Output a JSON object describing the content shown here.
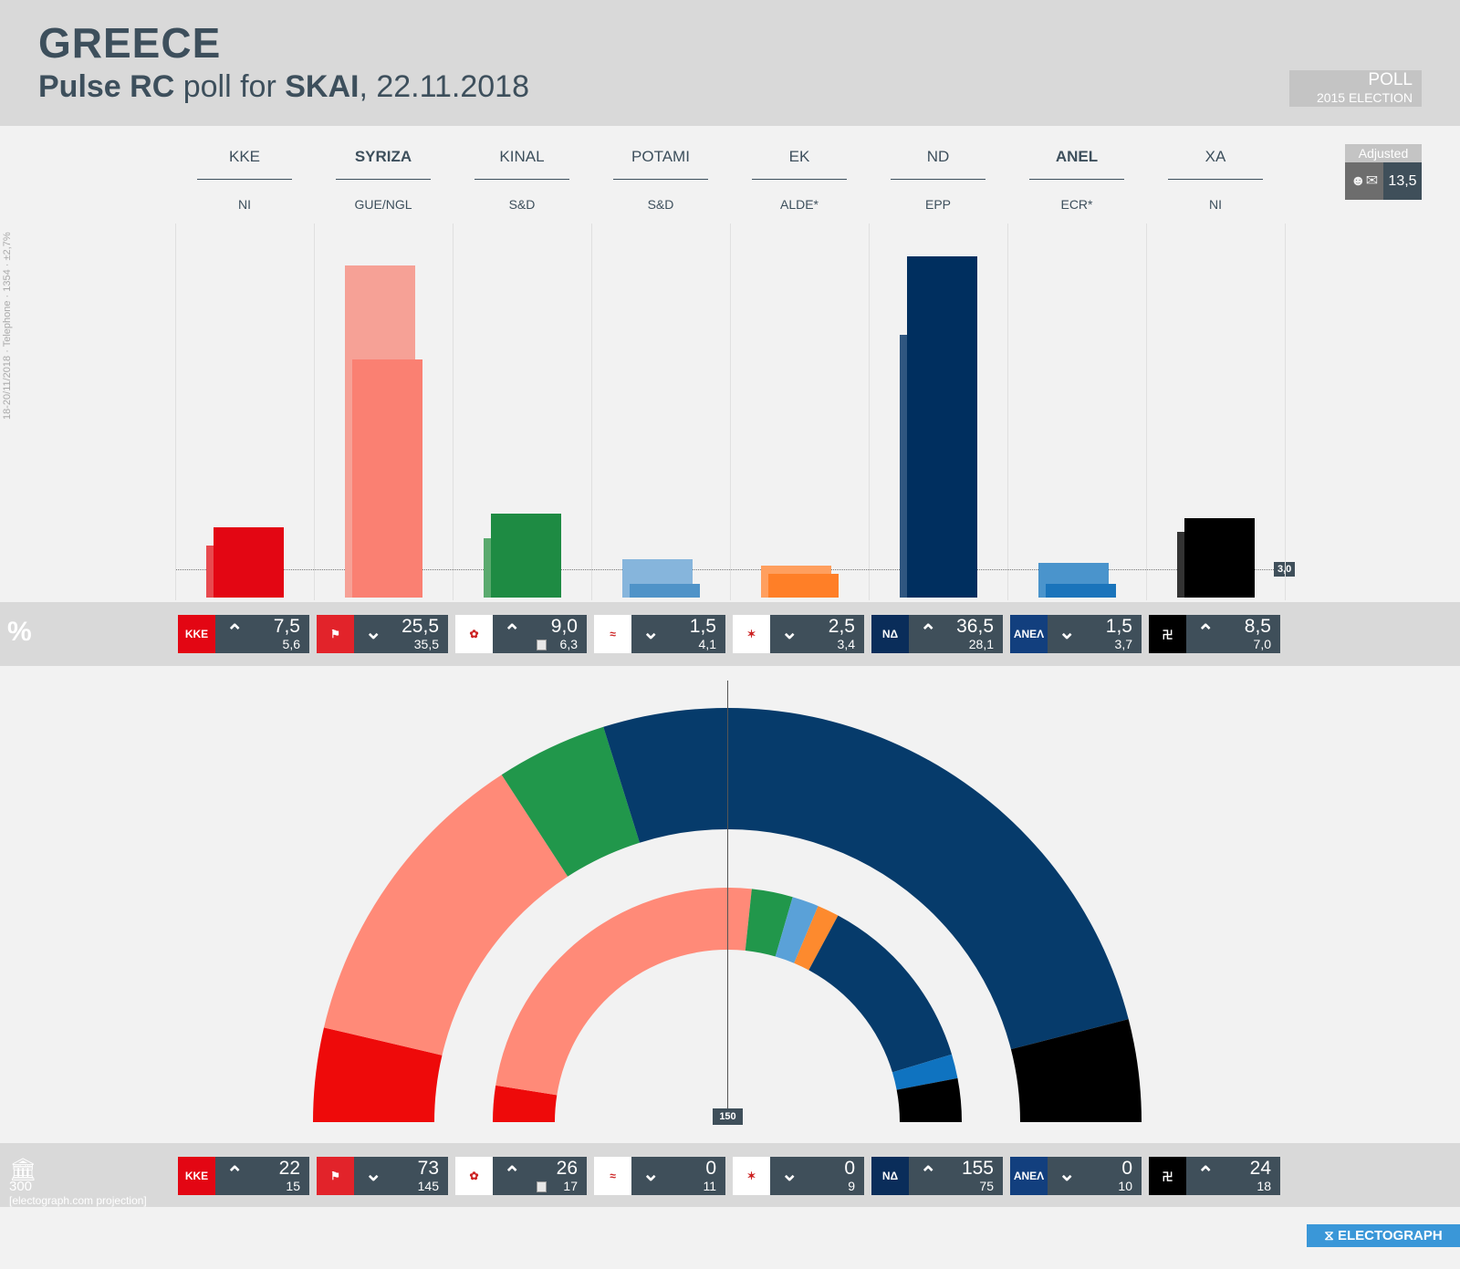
{
  "header": {
    "country": "GREECE",
    "pollster": "Pulse RC",
    "poll_for": "poll for",
    "client": "SKAI",
    "date": ", 22.11.2018"
  },
  "legend_box": {
    "current": "POLL",
    "previous": "2015 ELECTION"
  },
  "adjusted": {
    "label": "Adjusted",
    "icon": "undecided-voters-icon",
    "value": "13,5"
  },
  "methodology": "18-20/11/2018 · Telephone · 1354 · ±2,7%",
  "threshold_label": "3,0",
  "percent_symbol": "%",
  "seats": {
    "icon": "parliament-icon",
    "total": "300",
    "note": "[electograph.com projection]",
    "majority_label": "150"
  },
  "brand": "ELECTOGRAPH",
  "chart_data": [
    {
      "type": "bar",
      "ylabel": "%",
      "threshold": 3.0,
      "categories": [
        "KKE",
        "SYRIZA",
        "KINAL",
        "POTAMI",
        "EK",
        "ND",
        "ANEL",
        "XA"
      ],
      "groups": [
        "NI",
        "GUE/NGL",
        "S&D",
        "S&D",
        "ALDE*",
        "EPP",
        "ECR*",
        "NI"
      ],
      "government": [
        "SYRIZA",
        "ANEL"
      ],
      "series": [
        {
          "name": "POLL",
          "values": [
            7.5,
            25.5,
            9.0,
            1.5,
            2.5,
            36.5,
            1.5,
            8.5
          ],
          "labels": [
            "7,5",
            "25,5",
            "9,0",
            "1,5",
            "2,5",
            "36,5",
            "1,5",
            "8,5"
          ]
        },
        {
          "name": "2015 ELECTION",
          "values": [
            5.6,
            35.5,
            6.3,
            4.1,
            3.4,
            28.1,
            3.7,
            7.0
          ],
          "labels": [
            "5,6",
            "35,5",
            "6,3",
            "4,1",
            "3,4",
            "28,1",
            "3,7",
            "7,0"
          ]
        }
      ],
      "trend": [
        "up",
        "down",
        "up",
        "down",
        "down",
        "up",
        "down",
        "up"
      ],
      "colors": [
        "#e30613",
        "#fa8072",
        "#1e8b43",
        "#4f93c8",
        "#ff7f27",
        "#002f5f",
        "#1a74bb",
        "#000000"
      ],
      "colors_previous": [
        "#e84a4f",
        "#f6a196",
        "#5aaa6e",
        "#86b5dc",
        "#ff9f5e",
        "#2f5680",
        "#4a94cc",
        "#333333"
      ]
    },
    {
      "type": "hemicycle",
      "total": 300,
      "majority": 150,
      "categories": [
        "KKE",
        "SYRIZA",
        "KINAL",
        "POTAMI",
        "EK",
        "ND",
        "ANEL",
        "XA"
      ],
      "series": [
        {
          "name": "POLL",
          "values": [
            22,
            73,
            26,
            0,
            0,
            155,
            0,
            24
          ]
        },
        {
          "name": "2015 ELECTION",
          "values": [
            15,
            145,
            17,
            11,
            9,
            75,
            10,
            18
          ]
        }
      ],
      "trend": [
        "up",
        "down",
        "up",
        "down",
        "down",
        "up",
        "down",
        "up"
      ],
      "colors": [
        "#ee0a0a",
        "#ff8a78",
        "#21974b",
        "#5aa1d8",
        "#fd8a2e",
        "#063b6b",
        "#0f73c0",
        "#000000"
      ]
    }
  ]
}
